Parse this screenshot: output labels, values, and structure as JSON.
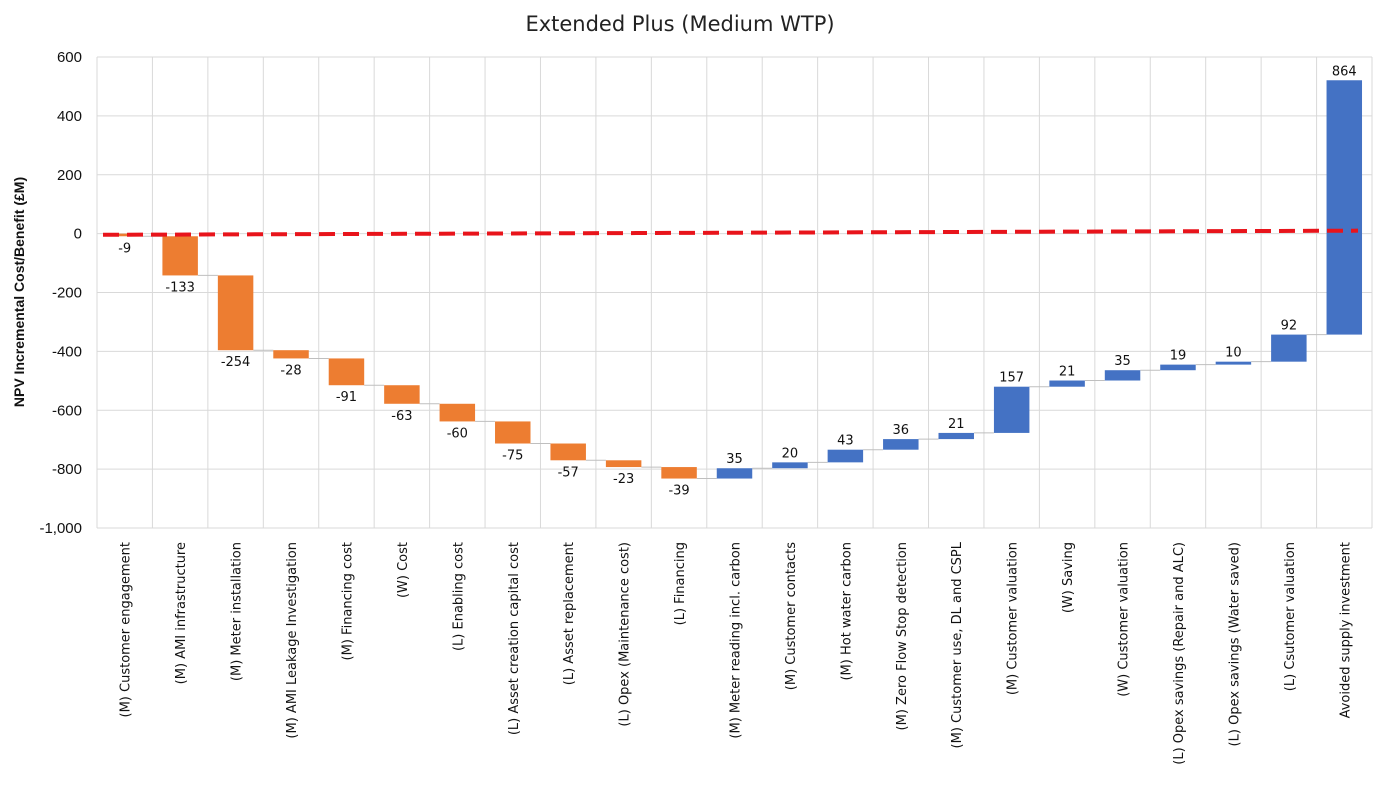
{
  "chart_data": {
    "type": "waterfall",
    "title": "Extended Plus (Medium WTP)",
    "xlabel": "",
    "ylabel": "NPV Incremental Cost/Benefit (£M)",
    "ylim": [
      -1000,
      600
    ],
    "yticks": [
      600,
      400,
      200,
      0,
      -200,
      -400,
      -600,
      -800,
      -1000
    ],
    "ytick_labels": [
      "600",
      "400",
      "200",
      "0",
      "-200",
      "-400",
      "-600",
      "-800",
      "-1,000"
    ],
    "grid": true,
    "colors": {
      "cost": "#ED7D31",
      "benefit": "#4472C4",
      "reference_line": "#E8141B"
    },
    "reference_line": {
      "style": "dashed",
      "from": -4,
      "to": 10
    },
    "categories": [
      "(M) Customer engagement",
      "(M) AMI infrastructure",
      "(M) Meter installation",
      "(M) AMI Leakage Investigation",
      "(M) Financing cost",
      "(W) Cost",
      "(L) Enabling cost",
      "(L) Asset creation capital cost",
      "(L) Asset replacement",
      "(L) Opex (Maintenance cost)",
      "(L) Financing",
      "(M) Meter reading incl. carbon",
      "(M) Customer contacts",
      "(M) Hot water carbon",
      "(M) Zero Flow Stop detection",
      "(M) Customer use, DL and CSPL",
      "(M) Customer valuation",
      "(W) Saving",
      "(W) Customer valuation",
      "(L) Opex savings (Repair and ALC)",
      "(L) Opex savings (Water saved)",
      "(L) Csutomer valuation",
      "Avoided supply investment"
    ],
    "values": [
      -9,
      -133,
      -254,
      -28,
      -91,
      -63,
      -60,
      -75,
      -57,
      -23,
      -39,
      35,
      20,
      43,
      36,
      21,
      157,
      21,
      35,
      19,
      10,
      92,
      864
    ],
    "value_labels": [
      "-9",
      "-133",
      "-254",
      "-28",
      "-91",
      "-63",
      "-60",
      "-75",
      "-57",
      "-23",
      "-39",
      "35",
      "20",
      "43",
      "36",
      "21",
      "157",
      "21",
      "35",
      "19",
      "10",
      "92",
      "864"
    ]
  }
}
